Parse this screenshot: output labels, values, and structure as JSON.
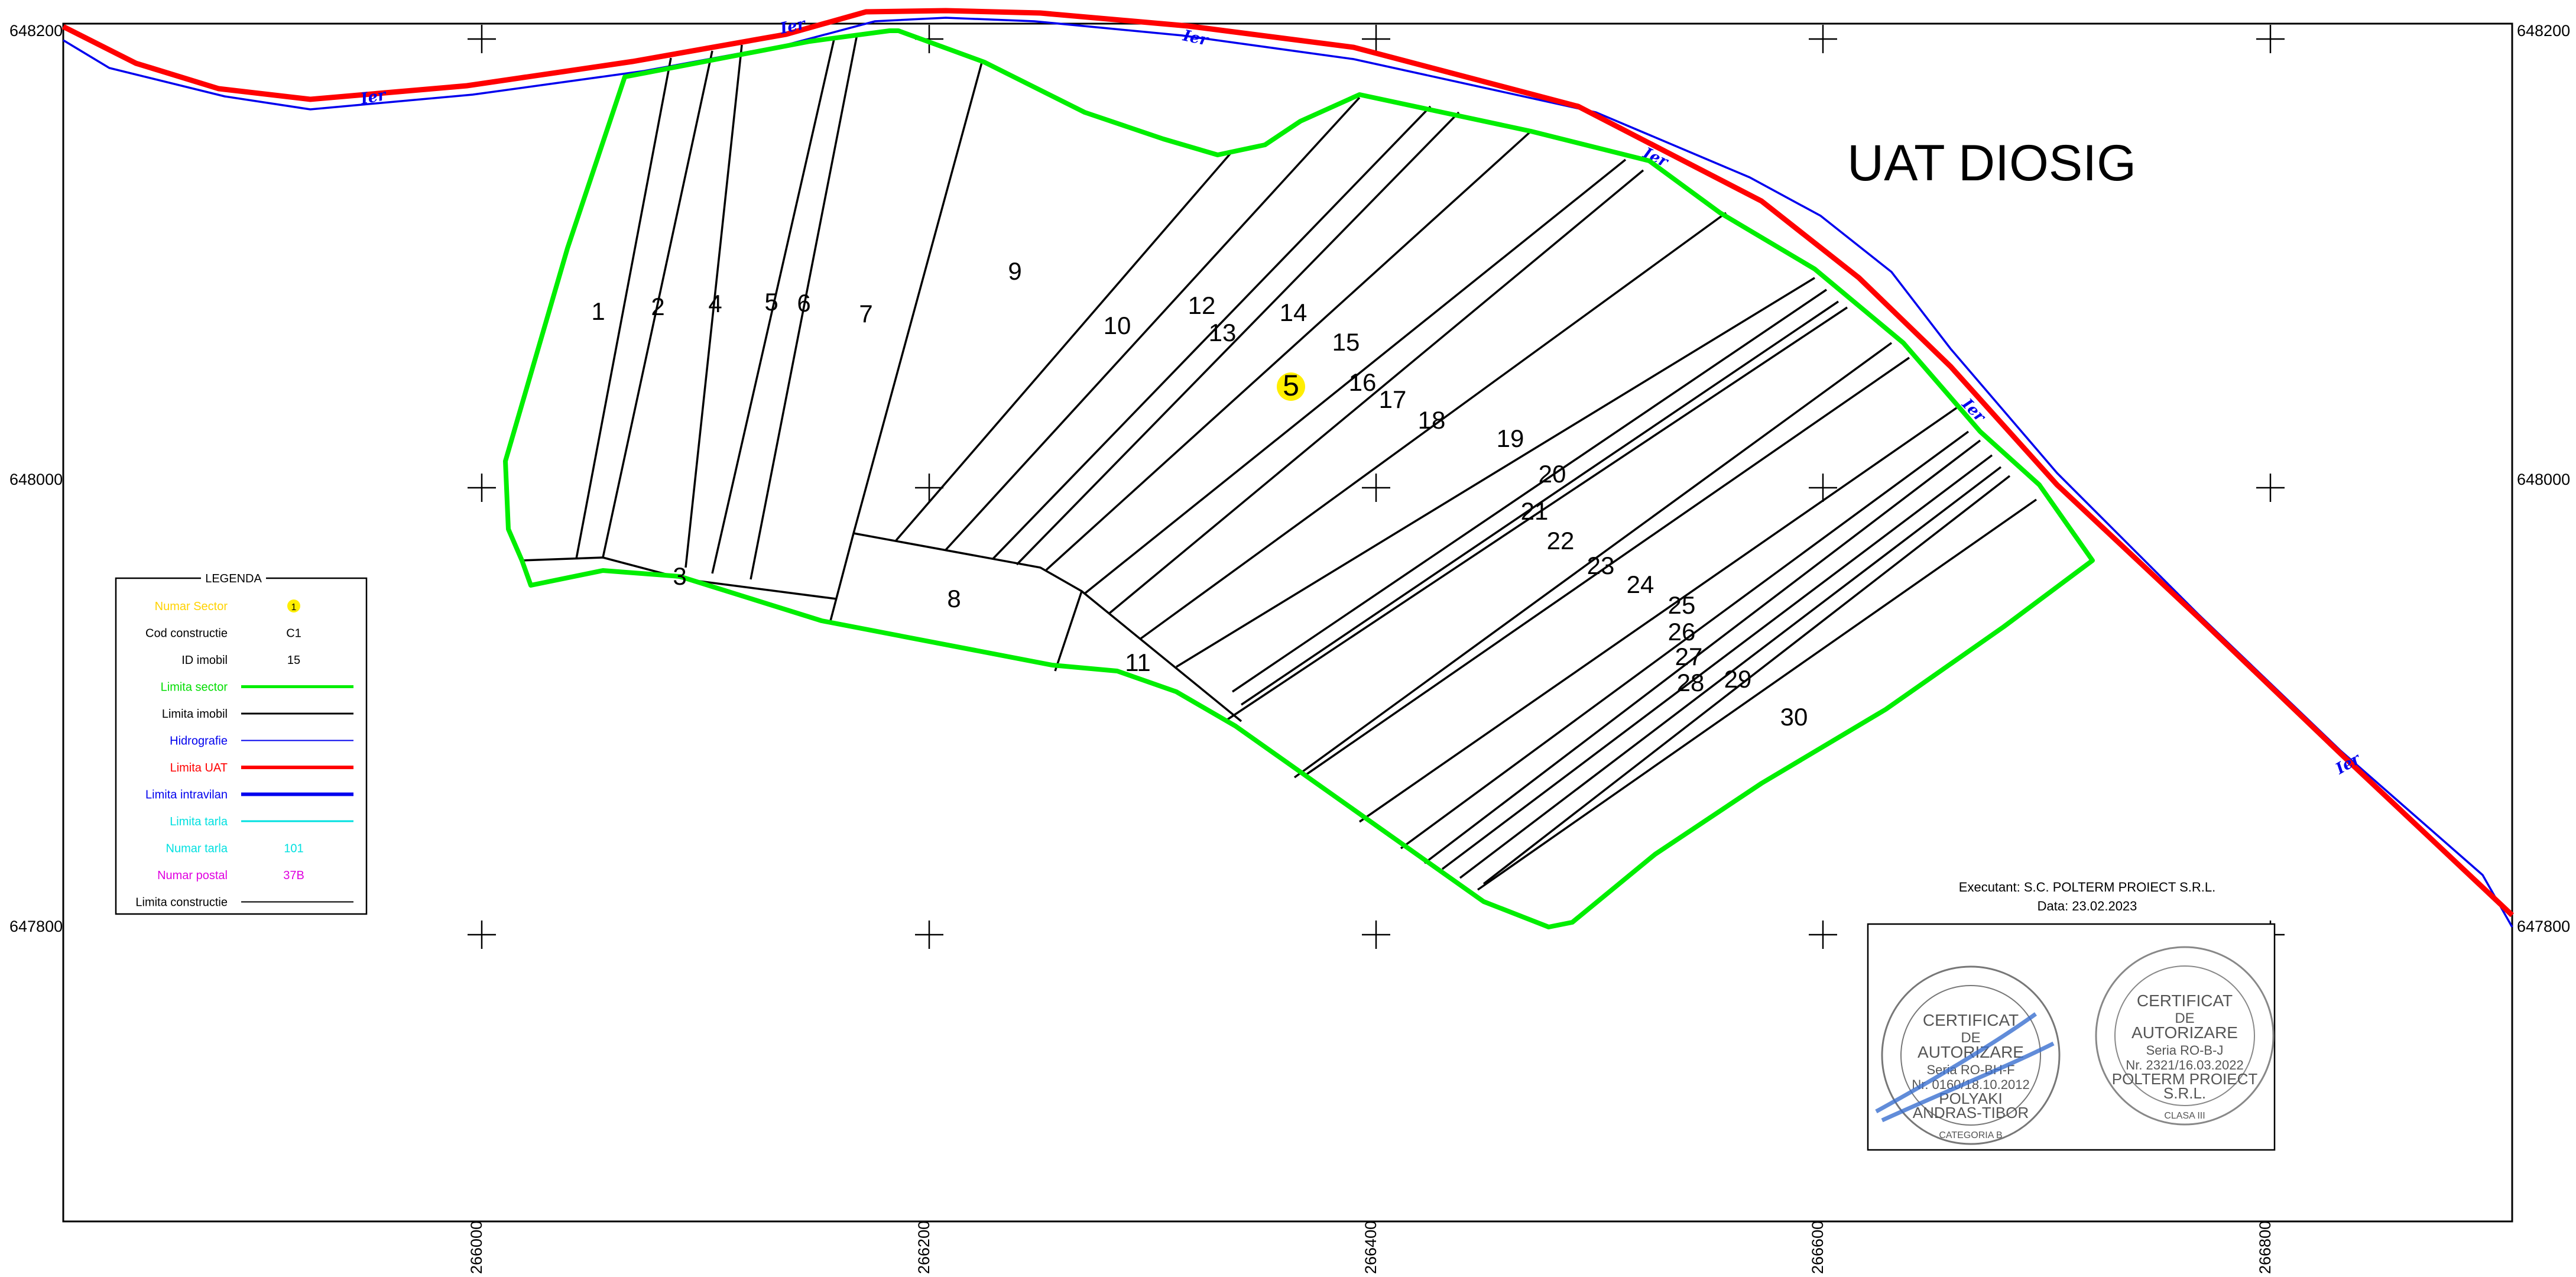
{
  "title": "UAT DIOSIG",
  "sector_number": "5",
  "coordinates": {
    "north": [
      "648200",
      "648000",
      "647800"
    ],
    "east": [
      "266000",
      "266200",
      "266400",
      "266600",
      "266800"
    ]
  },
  "river_label": "Ier",
  "lot_numbers": [
    "1",
    "2",
    "3",
    "4",
    "5",
    "6",
    "7",
    "8",
    "9",
    "10",
    "11",
    "12",
    "13",
    "14",
    "15",
    "16",
    "17",
    "18",
    "19",
    "20",
    "21",
    "22",
    "23",
    "24",
    "25",
    "26",
    "27",
    "28",
    "29",
    "30"
  ],
  "legend": {
    "title": "LEGENDA",
    "items": [
      {
        "label": "Numar Sector",
        "sample": "1",
        "label_color": "#ffd200",
        "kind": "badge"
      },
      {
        "label": "Cod constructie",
        "sample": "C1",
        "label_color": "#000000",
        "kind": "text"
      },
      {
        "label": "ID imobil",
        "sample": "15",
        "label_color": "#000000",
        "kind": "text"
      },
      {
        "label": "Limita sector",
        "sample": "",
        "label_color": "#00dd00",
        "kind": "line",
        "line_color": "#00ee00",
        "line_width": 5
      },
      {
        "label": "Limita imobil",
        "sample": "",
        "label_color": "#000000",
        "kind": "line",
        "line_color": "#000000",
        "line_width": 3
      },
      {
        "label": "Hidrografie",
        "sample": "",
        "label_color": "#0000ee",
        "kind": "line",
        "line_color": "#0000ee",
        "line_width": 2
      },
      {
        "label": "Limita UAT",
        "sample": "",
        "label_color": "#ff0000",
        "kind": "line",
        "line_color": "#ff0000",
        "line_width": 6
      },
      {
        "label": "Limita intravilan",
        "sample": "",
        "label_color": "#0000ee",
        "kind": "line",
        "line_color": "#0000ee",
        "line_width": 6
      },
      {
        "label": "Limita tarla",
        "sample": "",
        "label_color": "#00e0e0",
        "kind": "line",
        "line_color": "#00e0e0",
        "line_width": 3
      },
      {
        "label": "Numar tarla",
        "sample": "101",
        "label_color": "#00e0e0",
        "kind": "text",
        "sample_color": "#00e0e0"
      },
      {
        "label": "Numar postal",
        "sample": "37B",
        "label_color": "#e000e0",
        "kind": "text",
        "sample_color": "#e000e0"
      },
      {
        "label": "Limita constructie",
        "sample": "",
        "label_color": "#000000",
        "kind": "line",
        "line_color": "#000000",
        "line_width": 2
      }
    ]
  },
  "executant": "Executant: S.C. POLTERM PROIECT S.R.L.",
  "date": "Data: 23.02.2023",
  "stamp1": {
    "lines": [
      "CERTIFICAT",
      "DE",
      "AUTORIZARE",
      "Seria RO-BH-F",
      "Nr. 0160/18.10.2012",
      "POLYAKI",
      "ANDRAS-TIBOR",
      "CATEGORIA B"
    ]
  },
  "stamp2": {
    "lines": [
      "CERTIFICAT",
      "DE",
      "AUTORIZARE",
      "Seria RO-B-J",
      "Nr. 2321/16.03.2022",
      "POLTERM PROIECT",
      "S.R.L.",
      "CLASA III"
    ]
  },
  "colors": {
    "sector": "#00ee00",
    "uat": "#ff0000",
    "river": "#0000ee",
    "highlight": "#ffee00"
  }
}
